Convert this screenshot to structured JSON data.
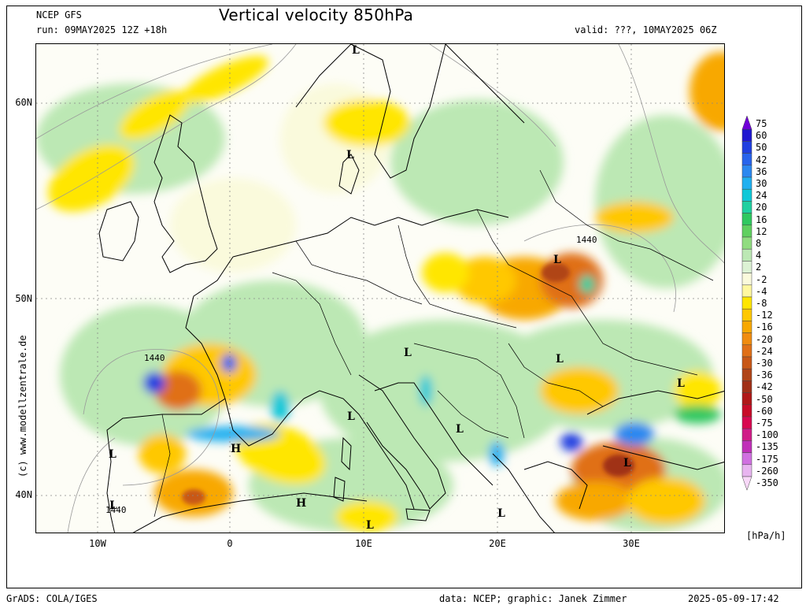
{
  "header": {
    "model": "NCEP GFS",
    "run": "run: 09MAY2025 12Z +18h",
    "title": "Vertical velocity 850hPa",
    "valid": "valid: ???, 10MAY2025 06Z"
  },
  "footer": {
    "left": "GrADS: COLA/IGES",
    "data": "data: NCEP; graphic: Janek Zimmer",
    "timestamp": "2025-05-09-17:42"
  },
  "credit": "(c) www.modellzentrale.de",
  "axes": {
    "lat_labels": [
      "60N",
      "50N",
      "40N"
    ],
    "lon_labels": [
      "10W",
      "0",
      "10E",
      "20E",
      "30E"
    ]
  },
  "legend": {
    "unit": "[hPa/h]",
    "levels": [
      "75",
      "60",
      "50",
      "42",
      "36",
      "30",
      "24",
      "20",
      "16",
      "12",
      "8",
      "4",
      "2",
      "-2",
      "-4",
      "-8",
      "-12",
      "-16",
      "-20",
      "-24",
      "-30",
      "-36",
      "-42",
      "-50",
      "-60",
      "-75",
      "-100",
      "-135",
      "-175",
      "-260",
      "-350"
    ],
    "colors": [
      "#7000d8",
      "#2018d0",
      "#2040e0",
      "#2864ec",
      "#2c88f0",
      "#20b0f0",
      "#10c8d8",
      "#20d0a0",
      "#30c860",
      "#60d060",
      "#90dc80",
      "#bce8b4",
      "#dcf2d4",
      "#fafadc",
      "#fff8a0",
      "#ffe600",
      "#ffc800",
      "#f8a800",
      "#f08c10",
      "#e07018",
      "#c85818",
      "#b04418",
      "#a03018",
      "#b01818",
      "#c80c28",
      "#d80850",
      "#d01c88",
      "#c030b8",
      "#d070e0",
      "#e8b4f0",
      "#f8d8f8"
    ]
  },
  "pressure_labels": [
    {
      "text": "L"
    },
    {
      "text": "L"
    },
    {
      "text": "L"
    },
    {
      "text": "L"
    },
    {
      "text": "L"
    },
    {
      "text": "L"
    },
    {
      "text": "L"
    },
    {
      "text": "L"
    },
    {
      "text": "L"
    },
    {
      "text": "L"
    },
    {
      "text": "L"
    },
    {
      "text": "L"
    },
    {
      "text": "H"
    },
    {
      "text": "H"
    },
    {
      "text": "L"
    }
  ],
  "contour_labels": [
    "1440",
    "1440",
    "1440"
  ]
}
